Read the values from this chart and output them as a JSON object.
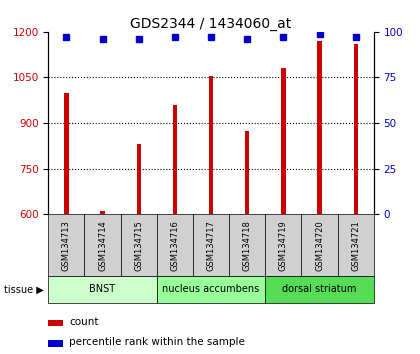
{
  "title": "GDS2344 / 1434060_at",
  "samples": [
    "GSM134713",
    "GSM134714",
    "GSM134715",
    "GSM134716",
    "GSM134717",
    "GSM134718",
    "GSM134719",
    "GSM134720",
    "GSM134721"
  ],
  "counts": [
    1000,
    612,
    830,
    960,
    1055,
    875,
    1080,
    1170,
    1160
  ],
  "percentiles": [
    97,
    96,
    96,
    97,
    97,
    96,
    97,
    99,
    97
  ],
  "ylim_left": [
    600,
    1200
  ],
  "ylim_right": [
    0,
    100
  ],
  "yticks_left": [
    600,
    750,
    900,
    1050,
    1200
  ],
  "yticks_right": [
    0,
    25,
    50,
    75,
    100
  ],
  "bar_color": "#cc0000",
  "dot_color": "#0000cc",
  "tissue_groups": [
    {
      "label": "BNST",
      "start": 0,
      "end": 3,
      "color": "#ccffcc"
    },
    {
      "label": "nucleus accumbens",
      "start": 3,
      "end": 6,
      "color": "#99ff99"
    },
    {
      "label": "dorsal striatum",
      "start": 6,
      "end": 9,
      "color": "#55dd55"
    }
  ],
  "legend_count": "count",
  "legend_percentile": "percentile rank within the sample",
  "bar_width": 0.12,
  "title_fontsize": 10,
  "tick_fontsize": 7.5,
  "label_fontsize": 7
}
